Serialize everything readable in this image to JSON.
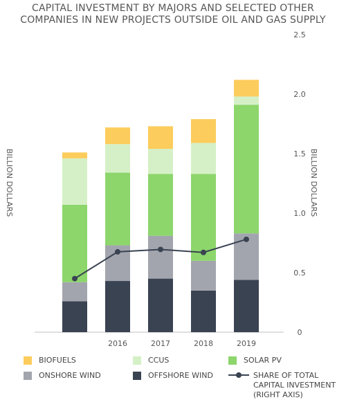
{
  "title_lines": [
    "CAPITAL INVESTMENT BY MAJORS AND SELECTED OTHER",
    "COMPANIES IN NEW PROJECTS OUTSIDE OIL AND GAS SUPPLY"
  ],
  "chart_data": {
    "type": "bar",
    "stacked": true,
    "categories": [
      "",
      "2016",
      "2017",
      "2018",
      "2019"
    ],
    "series": [
      {
        "name": "OFFSHORE WIND",
        "color": "#3a4352",
        "values": [
          0.26,
          0.43,
          0.45,
          0.35,
          0.44
        ]
      },
      {
        "name": "ONSHORE WIND",
        "color": "#a2a5ad",
        "values": [
          0.16,
          0.3,
          0.36,
          0.25,
          0.39
        ]
      },
      {
        "name": "SOLAR PV",
        "color": "#8cd66c",
        "values": [
          0.65,
          0.61,
          0.52,
          0.73,
          1.08
        ]
      },
      {
        "name": "CCUS",
        "color": "#d5f0c6",
        "values": [
          0.39,
          0.24,
          0.21,
          0.26,
          0.07
        ]
      },
      {
        "name": "BIOFUELS",
        "color": "#fccc5c",
        "values": [
          0.05,
          0.14,
          0.19,
          0.2,
          0.14
        ]
      }
    ],
    "line_series": {
      "name": "SHARE OF TOTAL CAPITAL INVESTMENT (RIGHT AXIS)",
      "color": "#3a4352",
      "values": [
        0.45,
        0.675,
        0.695,
        0.67,
        0.78
      ],
      "axis": "right"
    },
    "ylabel_left": "BILLION DOLLARS",
    "ylabel_right": "BILLION DOLLARS",
    "ylim": [
      0,
      2.5
    ],
    "yticks": [
      "0",
      "0.5",
      "1.0",
      "1.5",
      "2.0",
      "2.5"
    ],
    "grid": false
  },
  "legend": {
    "items": [
      {
        "label": "BIOFUELS",
        "color": "#fccc5c",
        "kind": "box"
      },
      {
        "label": "CCUS",
        "color": "#d5f0c6",
        "kind": "box"
      },
      {
        "label": "SOLAR PV",
        "color": "#8cd66c",
        "kind": "box"
      },
      {
        "label": "ONSHORE WIND",
        "color": "#a2a5ad",
        "kind": "box"
      },
      {
        "label": "OFFSHORE WIND",
        "color": "#3a4352",
        "kind": "box"
      },
      {
        "label": "SHARE OF TOTAL CAPITAL INVESTMENT (RIGHT AXIS)",
        "color": "#3a4352",
        "kind": "line"
      }
    ]
  }
}
